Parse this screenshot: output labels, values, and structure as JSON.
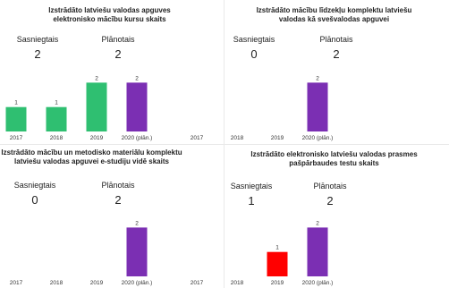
{
  "panels": [
    {
      "title": "Izstrādāto latviešu valodas apguves elektronisko mācību kursu skaits",
      "achieved_label": "Sasniegtais",
      "achieved_value": "2",
      "planned_label": "Plānotais",
      "planned_value": "2"
    },
    {
      "title": "Izstrādāto mācību līdzekļu komplektu latviešu valodas kā svešvalodas apguvei",
      "achieved_label": "Sasniegtais",
      "achieved_value": "0",
      "planned_label": "Plānotais",
      "planned_value": "2"
    },
    {
      "title": "Izstrādāto mācību un metodisko materiālu komplektu latviešu valodas apguvei e-studiju vidē skaits",
      "achieved_label": "Sasniegtais",
      "achieved_value": "0",
      "planned_label": "Plānotais",
      "planned_value": "2"
    },
    {
      "title": "Izstrādāto elektronisko latviešu valodas prasmes pašpārbaudes testu skaits",
      "achieved_label": "Sasniegtais",
      "achieved_value": "1",
      "planned_label": "Plānotais",
      "planned_value": "2"
    }
  ],
  "chart_data": [
    {
      "type": "bar",
      "title": "Izstrādāto latviešu valodas apguves elektronisko mācību kursu skaits",
      "categories": [
        "2017",
        "2018",
        "2019",
        "2020 (plān.)"
      ],
      "values": [
        1,
        1,
        2,
        2
      ],
      "bar_colors": [
        "#2fbf71",
        "#2fbf71",
        "#2fbf71",
        "#7b2fb3"
      ],
      "ylim": [
        0,
        2.6
      ]
    },
    {
      "type": "bar",
      "title": "Izstrādāto mācību līdzekļu komplektu latviešu valodas kā svešvalodas apguvei",
      "categories": [
        "2017",
        "2018",
        "2019",
        "2020 (plān.)"
      ],
      "values": [
        null,
        null,
        null,
        2
      ],
      "bar_colors": [
        "#2fbf71",
        "#2fbf71",
        "#2fbf71",
        "#7b2fb3"
      ],
      "ylim": [
        0,
        2.6
      ]
    },
    {
      "type": "bar",
      "title": "Izstrādāto mācību un metodisko materiālu komplektu latviešu valodas apguvei e-studiju vidē skaits",
      "categories": [
        "2017",
        "2018",
        "2019",
        "2020 (plān.)"
      ],
      "values": [
        null,
        null,
        null,
        2
      ],
      "bar_colors": [
        "#2fbf71",
        "#2fbf71",
        "#2fbf71",
        "#7b2fb3"
      ],
      "ylim": [
        0,
        2.6
      ]
    },
    {
      "type": "bar",
      "title": "Izstrādāto elektronisko latviešu valodas prasmes pašpārbaudes testu skaits",
      "categories": [
        "2017",
        "2018",
        "2019",
        "2020 (plān.)"
      ],
      "values": [
        null,
        null,
        1,
        2
      ],
      "bar_colors": [
        "#2fbf71",
        "#2fbf71",
        "#ff0000",
        "#7b2fb3"
      ],
      "ylim": [
        0,
        2.6
      ]
    }
  ]
}
